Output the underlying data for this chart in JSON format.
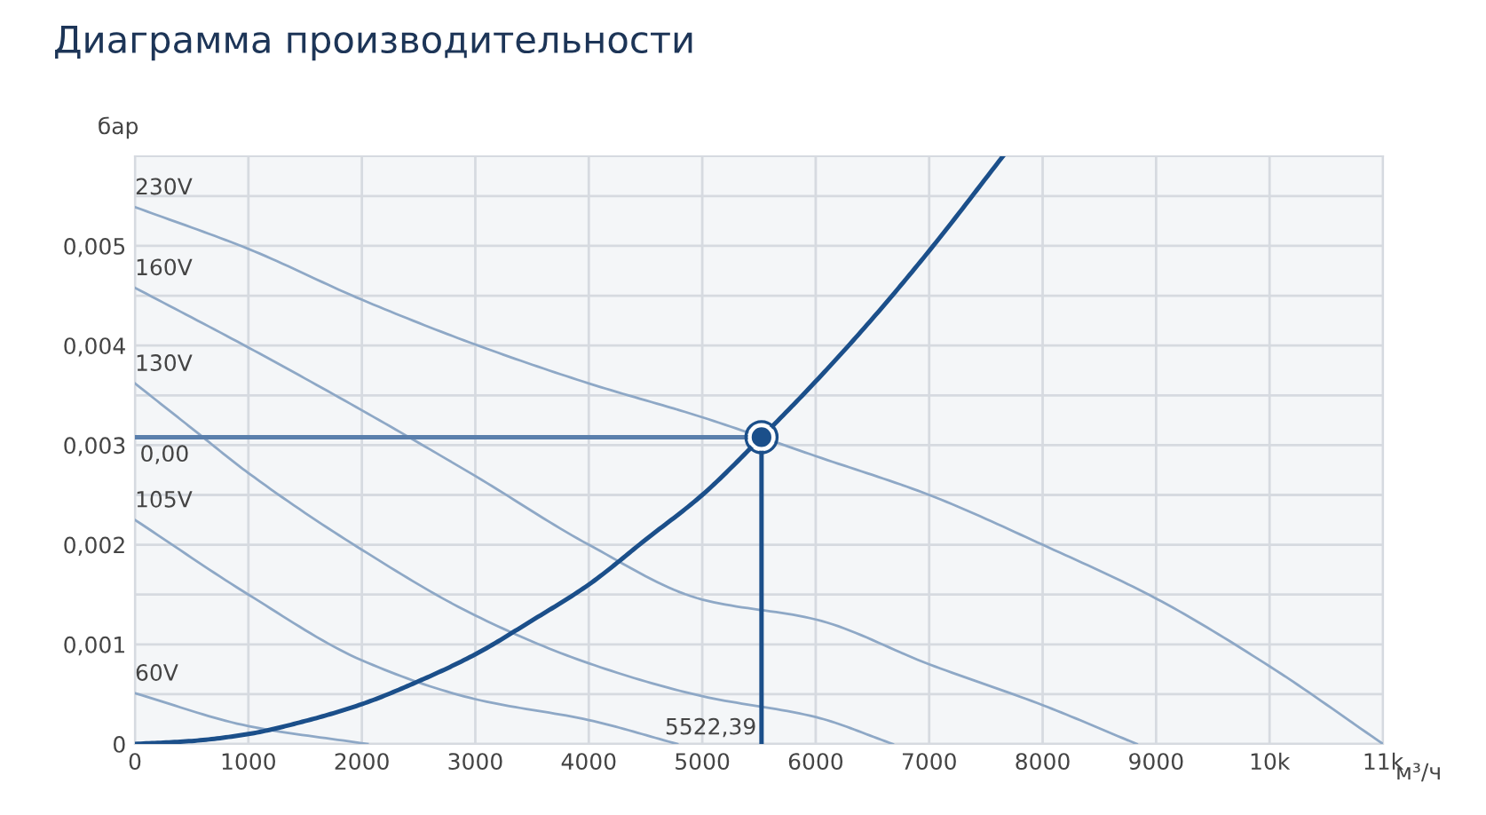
{
  "chart_data": {
    "type": "line",
    "title": "Диаграмма производительности",
    "xlabel": "м³/ч",
    "ylabel": "бар",
    "xlim": [
      0,
      11000
    ],
    "ylim": [
      0,
      0.0059
    ],
    "xticks": [
      0,
      1000,
      2000,
      3000,
      4000,
      5000,
      6000,
      7000,
      8000,
      9000,
      {
        "value": 10000,
        "label": "10k"
      },
      {
        "value": 11000,
        "label": "11k"
      }
    ],
    "yticks": [
      {
        "value": 0,
        "label": "0"
      },
      {
        "value": 0.0005,
        "label": null
      },
      {
        "value": 0.001,
        "label": "0,001"
      },
      {
        "value": 0.0015,
        "label": null
      },
      {
        "value": 0.002,
        "label": "0,002"
      },
      {
        "value": 0.0025,
        "label": null
      },
      {
        "value": 0.003,
        "label": "0,003"
      },
      {
        "value": 0.0035,
        "label": null
      },
      {
        "value": 0.004,
        "label": "0,004"
      },
      {
        "value": 0.0045,
        "label": null
      },
      {
        "value": 0.005,
        "label": "0,005"
      },
      {
        "value": 0.0055,
        "label": null
      }
    ],
    "grid": true,
    "legend": false,
    "series": [
      {
        "name": "230V",
        "color": "#8ea8c6",
        "x": [
          0,
          1000,
          2000,
          3000,
          4000,
          5000,
          6000,
          7000,
          8000,
          9000,
          10000,
          11000
        ],
        "values": [
          0.00539,
          0.00497,
          0.00446,
          0.00401,
          0.00362,
          0.00328,
          0.00289,
          0.0025,
          0.002,
          0.00146,
          0.00078,
          0
        ]
      },
      {
        "name": "160V",
        "color": "#8ea8c6",
        "x": [
          0,
          1000,
          2000,
          3000,
          4000,
          5000,
          6000,
          7000,
          8000,
          8830
        ],
        "values": [
          0.00458,
          0.00398,
          0.00335,
          0.00269,
          0.002,
          0.00145,
          0.00125,
          0.0008,
          0.00039,
          0
        ]
      },
      {
        "name": "130V",
        "color": "#8ea8c6",
        "x": [
          0,
          500,
          1000,
          2000,
          3000,
          4000,
          5000,
          6000,
          6680
        ],
        "values": [
          0.00362,
          0.00317,
          0.00272,
          0.00195,
          0.00129,
          0.00081,
          0.00048,
          0.00027,
          0
        ]
      },
      {
        "name": "105V",
        "color": "#8ea8c6",
        "x": [
          0,
          1000,
          2000,
          3000,
          4000,
          4780
        ],
        "values": [
          0.00225,
          0.0015,
          0.00084,
          0.00045,
          0.00024,
          0
        ]
      },
      {
        "name": "60V",
        "color": "#8ea8c6",
        "x": [
          0,
          1000,
          2050
        ],
        "values": [
          0.00051,
          0.00018,
          0
        ]
      },
      {
        "color": "#1b4f8a",
        "x": [
          0,
          500,
          1000,
          1500,
          2000,
          2500,
          3000,
          3500,
          4000,
          4500,
          5000,
          5522.39,
          6000,
          6500,
          7000,
          7650
        ],
        "values": [
          0,
          3e-05,
          0.0001,
          0.00023,
          0.0004,
          0.00063,
          0.0009,
          0.00124,
          0.0016,
          0.00205,
          0.0025,
          0.00308,
          0.00364,
          0.00427,
          0.00495,
          0.0059
        ]
      },
      {
        "color": "#5a7fac",
        "x": [
          0,
          5522.39
        ],
        "values": [
          0.00308,
          0.00308
        ]
      },
      {
        "color": "#1b4f8a",
        "x": [
          5522.39,
          5522.39
        ],
        "values": [
          0.00308,
          0
        ]
      },
      {
        "type": "scatter",
        "color": "#1b4f8a",
        "marker": "circle",
        "x": [
          5522.39
        ],
        "values": [
          0.00308
        ]
      }
    ],
    "annotations": [
      {
        "text": "0,00",
        "x": 0,
        "y": 0.00308
      },
      {
        "text": "5522,39",
        "x": 5522.39,
        "y": 0
      }
    ]
  }
}
